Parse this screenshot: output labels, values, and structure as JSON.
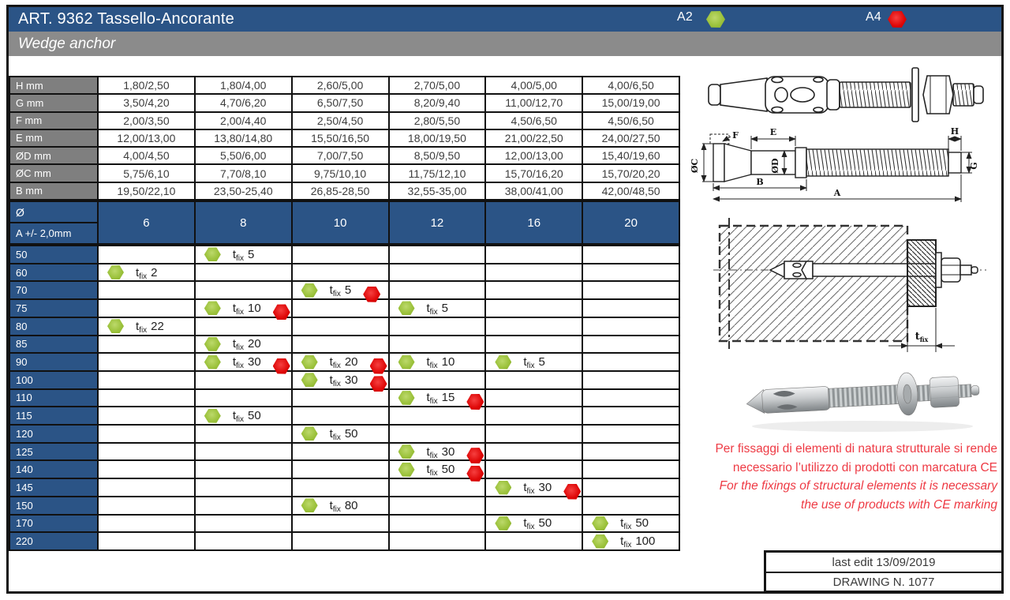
{
  "page": {
    "title": "ART. 9362 Tassello-Ancorante",
    "subtitle": "Wedge anchor",
    "legend": {
      "a2_label": "A2",
      "a4_label": "A4"
    }
  },
  "colors": {
    "header_blue": "#2b5486",
    "bar_gray": "#8b8b8b",
    "row_label_gray": "#7f7f7f",
    "green_hex": "#9cc23c",
    "red_hex": "#dd0505",
    "note_red": "#ee3a44"
  },
  "dim_table": {
    "rows": [
      {
        "label": "H mm",
        "values": [
          "1,80/2,50",
          "1,80/4,00",
          "2,60/5,00",
          "2,70/5,00",
          "4,00/5,00",
          "4,00/6,50"
        ]
      },
      {
        "label": "G mm",
        "values": [
          "3,50/4,20",
          "4,70/6,20",
          "6,50/7,50",
          "8,20/9,40",
          "11,00/12,70",
          "15,00/19,00"
        ]
      },
      {
        "label": "F mm",
        "values": [
          "2,00/3,50",
          "2,00/4,40",
          "2,50/4,50",
          "2,80/5,50",
          "4,50/6,50",
          "4,50/6,50"
        ]
      },
      {
        "label": "E mm",
        "values": [
          "12,00/13,00",
          "13,80/14,80",
          "15,50/16,50",
          "18,00/19,50",
          "21,00/22,50",
          "24,00/27,50"
        ]
      },
      {
        "label": "ØD mm",
        "values": [
          "4,00/4,50",
          "5,50/6,00",
          "7,00/7,50",
          "8,50/9,50",
          "12,00/13,00",
          "15,40/19,60"
        ]
      },
      {
        "label": "ØC mm",
        "values": [
          "5,75/6,10",
          "7,70/8,10",
          "9,75/10,10",
          "11,75/12,10",
          "15,70/16,20",
          "15,70/20,20"
        ]
      },
      {
        "label": "B mm",
        "values": [
          "19,50/22,10",
          "23,50-25,40",
          "26,85-28,50",
          "32,55-35,00",
          "38,00/41,00",
          "42,00/48,50"
        ]
      }
    ]
  },
  "matrix": {
    "corner_top": "Ø",
    "corner_bottom": "A +/- 2,0mm",
    "diameters": [
      "6",
      "8",
      "10",
      "12",
      "16",
      "20"
    ],
    "tfix_prefix": "t",
    "tfix_sub": "fix",
    "rows": [
      {
        "length": "50",
        "cells": [
          null,
          {
            "v": "5",
            "red": false
          },
          null,
          null,
          null,
          null
        ]
      },
      {
        "length": "60",
        "cells": [
          {
            "v": "2",
            "red": false
          },
          null,
          null,
          null,
          null,
          null
        ]
      },
      {
        "length": "70",
        "cells": [
          null,
          null,
          {
            "v": "5",
            "red": true
          },
          null,
          null,
          null
        ]
      },
      {
        "length": "75",
        "cells": [
          null,
          {
            "v": "10",
            "red": true
          },
          null,
          {
            "v": "5",
            "red": false
          },
          null,
          null
        ]
      },
      {
        "length": "80",
        "cells": [
          {
            "v": "22",
            "red": false
          },
          null,
          null,
          null,
          null,
          null
        ]
      },
      {
        "length": "85",
        "cells": [
          null,
          {
            "v": "20",
            "red": false
          },
          null,
          null,
          null,
          null
        ]
      },
      {
        "length": "90",
        "cells": [
          null,
          {
            "v": "30",
            "red": true
          },
          {
            "v": "20",
            "red": true
          },
          {
            "v": "10",
            "red": false
          },
          {
            "v": "5",
            "red": false
          },
          null
        ]
      },
      {
        "length": "100",
        "cells": [
          null,
          null,
          {
            "v": "30",
            "red": true
          },
          null,
          null,
          null
        ]
      },
      {
        "length": "110",
        "cells": [
          null,
          null,
          null,
          {
            "v": "15",
            "red": true
          },
          null,
          null
        ]
      },
      {
        "length": "115",
        "cells": [
          null,
          {
            "v": "50",
            "red": false
          },
          null,
          null,
          null,
          null
        ]
      },
      {
        "length": "120",
        "cells": [
          null,
          null,
          {
            "v": "50",
            "red": false
          },
          null,
          null,
          null
        ]
      },
      {
        "length": "125",
        "cells": [
          null,
          null,
          null,
          {
            "v": "30",
            "red": true
          },
          null,
          null
        ]
      },
      {
        "length": "140",
        "cells": [
          null,
          null,
          null,
          {
            "v": "50",
            "red": true
          },
          null,
          null
        ]
      },
      {
        "length": "145",
        "cells": [
          null,
          null,
          null,
          null,
          {
            "v": "30",
            "red": true
          },
          null
        ]
      },
      {
        "length": "150",
        "cells": [
          null,
          null,
          {
            "v": "80",
            "red": false
          },
          null,
          null,
          null
        ]
      },
      {
        "length": "170",
        "cells": [
          null,
          null,
          null,
          null,
          {
            "v": "50",
            "red": false
          },
          {
            "v": "50",
            "red": false
          }
        ]
      },
      {
        "length": "220",
        "cells": [
          null,
          null,
          null,
          null,
          null,
          {
            "v": "100",
            "red": false
          }
        ]
      }
    ]
  },
  "note": {
    "line1": "Per fissaggi di elementi di natura strutturale si rende",
    "line2": "necessario l’utilizzo di prodotti con marcatura CE",
    "line3": "For the fixings of structural elements it is necessary",
    "line4": "the use of products with CE marking"
  },
  "footer": {
    "last_edit": "last edit 13/09/2019",
    "drawing_number": "DRAWING N. 1077"
  },
  "drawings": {
    "dims": {
      "A": "A",
      "B": "B",
      "E": "E",
      "F": "F",
      "G": "G",
      "H": "H",
      "OC": "ØC",
      "OD": "ØD"
    },
    "tfix_t": "t",
    "tfix_sub": "fix"
  }
}
